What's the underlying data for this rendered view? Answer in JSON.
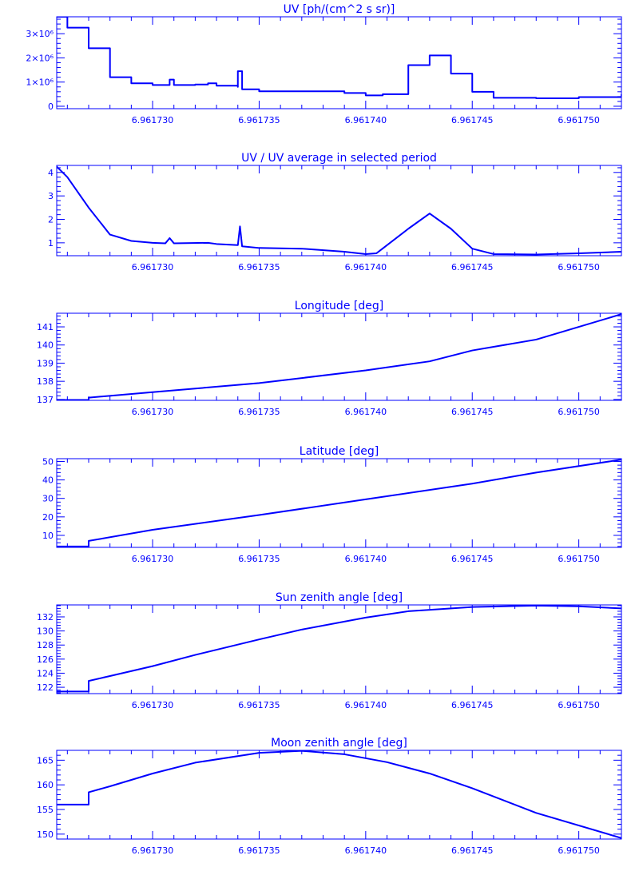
{
  "colors": {
    "plot": "#0000ff",
    "background": "#ffffff"
  },
  "chart_data": [
    {
      "type": "line",
      "title": "UV [ph/(cm^2 s sr)]",
      "xlim": [
        6.9617255,
        6.961752
      ],
      "ylim": [
        -0.1,
        3.7
      ],
      "y_scale_label": "x10^6",
      "xticks": [
        6.96173,
        6.961735,
        6.96174,
        6.961745,
        6.96175
      ],
      "xtick_labels": [
        "6.961730",
        "6.961735",
        "6.961740",
        "6.961745",
        "6.961750"
      ],
      "yticks": [
        0,
        1,
        2,
        3
      ],
      "ytick_labels": [
        "0",
        "1×10⁶",
        "2×10⁶",
        "3×10⁶"
      ],
      "step": true,
      "points": [
        [
          6.9617255,
          3.7
        ],
        [
          6.961726,
          3.25
        ],
        [
          6.961727,
          2.4
        ],
        [
          6.961728,
          1.2
        ],
        [
          6.961729,
          0.95
        ],
        [
          6.96173,
          0.88
        ],
        [
          6.9617308,
          0.9
        ],
        [
          6.9617308,
          1.1
        ],
        [
          6.961731,
          1.1
        ],
        [
          6.961731,
          0.88
        ],
        [
          6.961732,
          0.9
        ],
        [
          6.9617326,
          0.95
        ],
        [
          6.961733,
          0.85
        ],
        [
          6.961734,
          0.8
        ],
        [
          6.961734,
          1.45
        ],
        [
          6.9617342,
          1.45
        ],
        [
          6.9617342,
          0.7
        ],
        [
          6.961735,
          0.62
        ],
        [
          6.961737,
          0.62
        ],
        [
          6.961739,
          0.55
        ],
        [
          6.96174,
          0.45
        ],
        [
          6.9617408,
          0.5
        ],
        [
          6.961742,
          1.7
        ],
        [
          6.961743,
          2.1
        ],
        [
          6.961744,
          1.35
        ],
        [
          6.961745,
          0.6
        ],
        [
          6.961746,
          0.35
        ],
        [
          6.961748,
          0.33
        ],
        [
          6.96175,
          0.38
        ],
        [
          6.961752,
          0.5
        ]
      ]
    },
    {
      "type": "line",
      "title": "UV / UV average in selected period",
      "xlim": [
        6.9617255,
        6.961752
      ],
      "ylim": [
        0.45,
        4.3
      ],
      "xticks": [
        6.96173,
        6.961735,
        6.96174,
        6.961745,
        6.96175
      ],
      "xtick_labels": [
        "6.961730",
        "6.961735",
        "6.961740",
        "6.961745",
        "6.961750"
      ],
      "yticks": [
        1,
        2,
        3,
        4
      ],
      "ytick_labels": [
        "1",
        "2",
        "3",
        "4"
      ],
      "step": false,
      "points": [
        [
          6.9617255,
          4.25
        ],
        [
          6.961726,
          3.8
        ],
        [
          6.961727,
          2.5
        ],
        [
          6.961728,
          1.35
        ],
        [
          6.961729,
          1.08
        ],
        [
          6.96173,
          1.0
        ],
        [
          6.9617306,
          0.98
        ],
        [
          6.9617308,
          1.2
        ],
        [
          6.961731,
          0.98
        ],
        [
          6.9617326,
          1.0
        ],
        [
          6.961733,
          0.95
        ],
        [
          6.961734,
          0.9
        ],
        [
          6.9617341,
          1.7
        ],
        [
          6.9617342,
          0.85
        ],
        [
          6.961735,
          0.78
        ],
        [
          6.961737,
          0.75
        ],
        [
          6.961739,
          0.62
        ],
        [
          6.96174,
          0.52
        ],
        [
          6.9617405,
          0.55
        ],
        [
          6.961742,
          1.6
        ],
        [
          6.961743,
          2.25
        ],
        [
          6.961744,
          1.6
        ],
        [
          6.961745,
          0.75
        ],
        [
          6.961746,
          0.52
        ],
        [
          6.961748,
          0.5
        ],
        [
          6.96175,
          0.55
        ],
        [
          6.961752,
          0.62
        ]
      ]
    },
    {
      "type": "line",
      "title": "Longitude [deg]",
      "xlim": [
        6.9617255,
        6.961752
      ],
      "ylim": [
        136.95,
        141.75
      ],
      "xticks": [
        6.96173,
        6.961735,
        6.96174,
        6.961745,
        6.96175
      ],
      "xtick_labels": [
        "6.961730",
        "6.961735",
        "6.961740",
        "6.961745",
        "6.961750"
      ],
      "yticks": [
        137,
        138,
        139,
        140,
        141
      ],
      "ytick_labels": [
        "137",
        "138",
        "139",
        "140",
        "141"
      ],
      "step": false,
      "points": [
        [
          6.9617255,
          136.97
        ],
        [
          6.961727,
          136.97
        ],
        [
          6.961727,
          137.1
        ],
        [
          6.96173,
          137.4
        ],
        [
          6.961735,
          137.9
        ],
        [
          6.96174,
          138.6
        ],
        [
          6.961743,
          139.1
        ],
        [
          6.961745,
          139.7
        ],
        [
          6.961748,
          140.3
        ],
        [
          6.96175,
          141.0
        ],
        [
          6.961752,
          141.7
        ]
      ]
    },
    {
      "type": "line",
      "title": "Latitude [deg]",
      "xlim": [
        6.9617255,
        6.961752
      ],
      "ylim": [
        3.5,
        51.5
      ],
      "xticks": [
        6.96173,
        6.961735,
        6.96174,
        6.961745,
        6.96175
      ],
      "xtick_labels": [
        "6.961730",
        "6.961735",
        "6.961740",
        "6.961745",
        "6.961750"
      ],
      "yticks": [
        10,
        20,
        30,
        40,
        50
      ],
      "ytick_labels": [
        "10",
        "20",
        "30",
        "40",
        "50"
      ],
      "step": false,
      "points": [
        [
          6.9617255,
          4
        ],
        [
          6.961727,
          4
        ],
        [
          6.961727,
          7
        ],
        [
          6.96173,
          13
        ],
        [
          6.961735,
          21
        ],
        [
          6.96174,
          29.5
        ],
        [
          6.961745,
          38
        ],
        [
          6.961748,
          44
        ],
        [
          6.961752,
          51
        ]
      ]
    },
    {
      "type": "line",
      "title": "Sun zenith angle [deg]",
      "xlim": [
        6.9617255,
        6.961752
      ],
      "ylim": [
        121.1,
        133.7
      ],
      "xticks": [
        6.96173,
        6.961735,
        6.96174,
        6.961745,
        6.96175
      ],
      "xtick_labels": [
        "6.961730",
        "6.961735",
        "6.961740",
        "6.961745",
        "6.961750"
      ],
      "yticks": [
        122,
        124,
        126,
        128,
        130,
        132
      ],
      "ytick_labels": [
        "122",
        "124",
        "126",
        "128",
        "130",
        "132"
      ],
      "step": false,
      "points": [
        [
          6.9617255,
          121.4
        ],
        [
          6.961727,
          121.4
        ],
        [
          6.961727,
          122.9
        ],
        [
          6.961728,
          123.6
        ],
        [
          6.96173,
          125
        ],
        [
          6.961732,
          126.6
        ],
        [
          6.961735,
          128.8
        ],
        [
          6.961737,
          130.2
        ],
        [
          6.96174,
          131.9
        ],
        [
          6.961742,
          132.8
        ],
        [
          6.961745,
          133.4
        ],
        [
          6.961748,
          133.6
        ],
        [
          6.96175,
          133.5
        ],
        [
          6.961752,
          133.2
        ]
      ]
    },
    {
      "type": "line",
      "title": "Moon zenith angle [deg]",
      "xlim": [
        6.9617255,
        6.961752
      ],
      "ylim": [
        149,
        167
      ],
      "xticks": [
        6.96173,
        6.961735,
        6.96174,
        6.961745,
        6.96175
      ],
      "xtick_labels": [
        "6.961730",
        "6.961735",
        "6.961740",
        "6.961745",
        "6.961750"
      ],
      "yticks": [
        150,
        155,
        160,
        165
      ],
      "ytick_labels": [
        "150",
        "155",
        "160",
        "165"
      ],
      "step": false,
      "points": [
        [
          6.9617255,
          156
        ],
        [
          6.961727,
          156
        ],
        [
          6.961727,
          158.5
        ],
        [
          6.961728,
          159.7
        ],
        [
          6.96173,
          162.3
        ],
        [
          6.961732,
          164.5
        ],
        [
          6.961735,
          166.5
        ],
        [
          6.961737,
          166.9
        ],
        [
          6.961739,
          166.2
        ],
        [
          6.961741,
          164.6
        ],
        [
          6.961743,
          162.3
        ],
        [
          6.961745,
          159.3
        ],
        [
          6.961748,
          154.3
        ],
        [
          6.961752,
          149.2
        ]
      ]
    }
  ]
}
